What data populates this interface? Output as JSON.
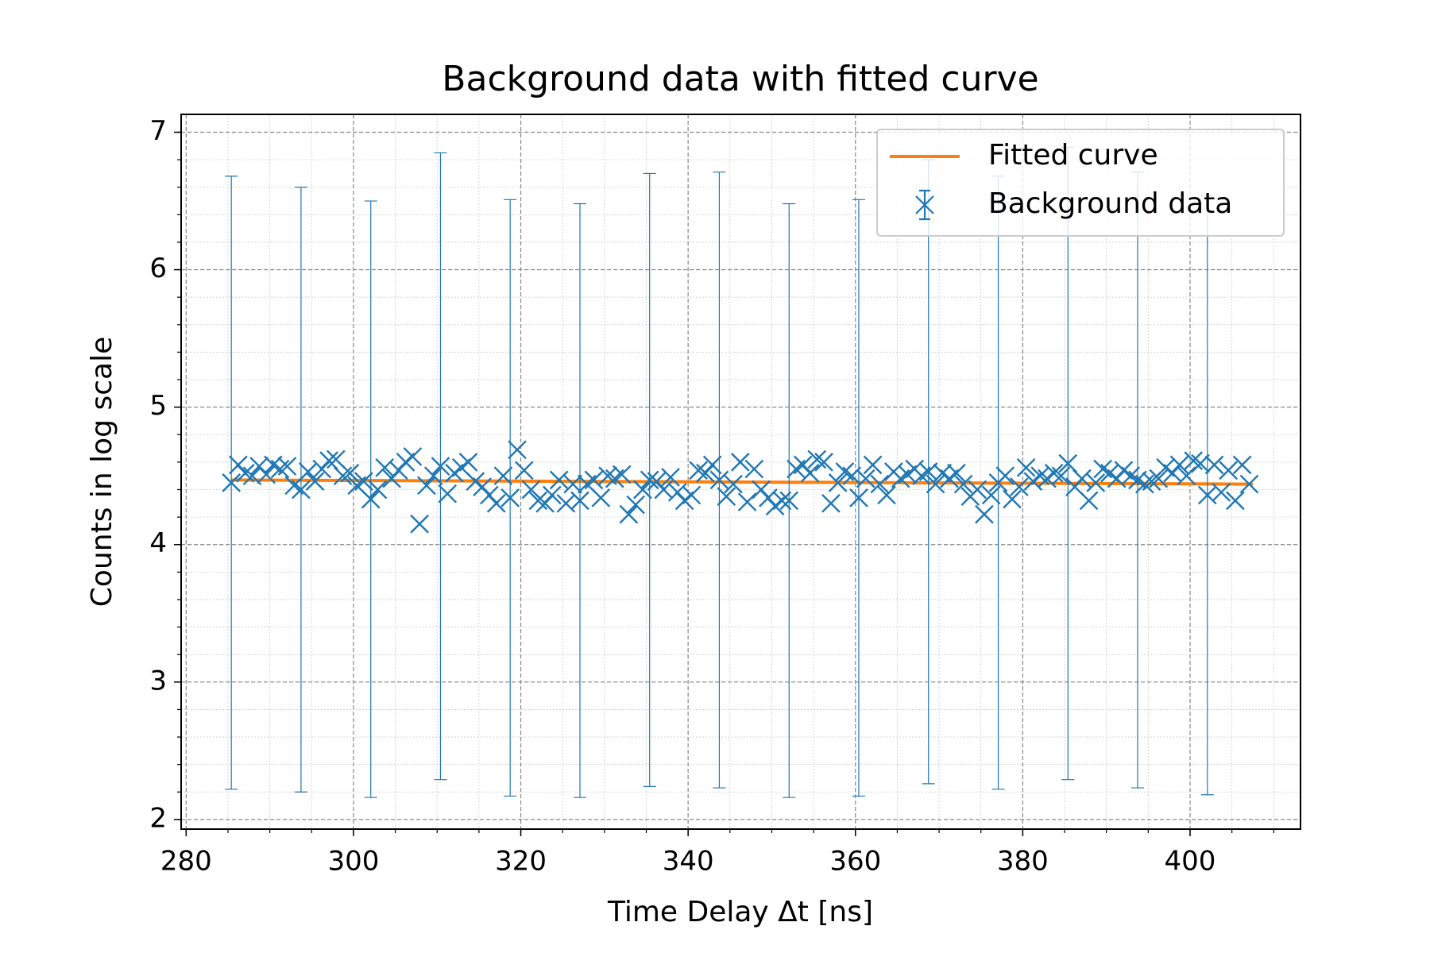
{
  "chart_data": {
    "type": "scatter",
    "title": "Background data with fitted curve",
    "x_label": "Time Delay Δt [ns]",
    "y_label": "Counts in log scale",
    "xlim": [
      279.4,
      413.2
    ],
    "ylim": [
      1.93,
      7.13
    ],
    "xticks": [
      280,
      300,
      320,
      340,
      360,
      380,
      400
    ],
    "yticks": [
      2,
      3,
      4,
      5,
      6,
      7
    ],
    "grid": true,
    "legend": "upper right",
    "series": [
      {
        "name": "Fitted curve",
        "type": "line",
        "color": "#ff7f0e",
        "x": [
          285.4,
          407.5
        ],
        "values": [
          4.47,
          4.44
        ]
      },
      {
        "name": "Background data",
        "type": "errorbar",
        "color": "#1f77b4",
        "x": [
          285.4,
          286.23,
          287.07,
          287.9,
          288.73,
          289.57,
          290.4,
          291.23,
          292.07,
          292.9,
          293.73,
          294.57,
          295.4,
          296.23,
          297.07,
          297.9,
          298.73,
          299.57,
          300.4,
          301.23,
          302.07,
          302.9,
          303.73,
          304.57,
          305.4,
          306.23,
          307.07,
          307.9,
          308.73,
          309.57,
          310.4,
          311.23,
          312.07,
          312.9,
          313.73,
          314.57,
          315.4,
          316.23,
          317.07,
          317.9,
          318.73,
          319.57,
          320.4,
          321.23,
          322.07,
          322.9,
          323.73,
          324.57,
          325.4,
          326.23,
          327.07,
          327.9,
          328.73,
          329.57,
          330.4,
          331.23,
          332.07,
          332.9,
          333.73,
          334.57,
          335.4,
          336.23,
          337.07,
          337.9,
          338.73,
          339.57,
          340.4,
          341.23,
          342.07,
          342.9,
          343.73,
          344.57,
          345.4,
          346.23,
          347.07,
          347.9,
          348.73,
          349.57,
          350.4,
          351.23,
          352.07,
          352.9,
          353.73,
          354.57,
          355.4,
          356.23,
          357.07,
          357.9,
          358.73,
          359.57,
          360.4,
          361.23,
          362.07,
          362.9,
          363.73,
          364.57,
          365.4,
          366.23,
          367.07,
          367.9,
          368.73,
          369.57,
          370.4,
          371.23,
          372.07,
          372.9,
          373.73,
          374.57,
          375.4,
          376.23,
          377.07,
          377.9,
          378.73,
          379.57,
          380.4,
          381.23,
          382.07,
          382.9,
          383.73,
          384.57,
          385.4,
          386.23,
          387.07,
          387.9,
          388.73,
          389.57,
          390.4,
          391.23,
          392.07,
          392.9,
          393.73,
          394.57,
          395.4,
          396.23,
          397.07,
          397.9,
          398.73,
          399.57,
          400.4,
          401.23,
          402.07,
          402.9,
          403.73,
          404.57,
          405.4,
          406.23,
          407.07
        ],
        "values": [
          4.45,
          4.58,
          4.52,
          4.5,
          4.57,
          4.51,
          4.58,
          4.55,
          4.57,
          4.43,
          4.4,
          4.53,
          4.46,
          4.55,
          4.61,
          4.62,
          4.5,
          4.52,
          4.43,
          4.46,
          4.33,
          4.4,
          4.56,
          4.48,
          4.54,
          4.6,
          4.64,
          4.15,
          4.43,
          4.5,
          4.57,
          4.37,
          4.52,
          4.56,
          4.6,
          4.46,
          4.42,
          4.36,
          4.3,
          4.5,
          4.34,
          4.69,
          4.54,
          4.4,
          4.32,
          4.3,
          4.36,
          4.47,
          4.3,
          4.44,
          4.32,
          4.44,
          4.47,
          4.34,
          4.5,
          4.48,
          4.51,
          4.22,
          4.29,
          4.4,
          4.47,
          4.46,
          4.4,
          4.49,
          4.38,
          4.32,
          4.36,
          4.54,
          4.52,
          4.58,
          4.47,
          4.35,
          4.44,
          4.6,
          4.31,
          4.55,
          4.4,
          4.34,
          4.28,
          4.32,
          4.32,
          4.55,
          4.58,
          4.52,
          4.62,
          4.6,
          4.3,
          4.45,
          4.53,
          4.5,
          4.34,
          4.48,
          4.58,
          4.44,
          4.36,
          4.53,
          4.48,
          4.51,
          4.55,
          4.5,
          4.53,
          4.44,
          4.52,
          4.48,
          4.52,
          4.44,
          4.35,
          4.4,
          4.22,
          4.36,
          4.45,
          4.5,
          4.33,
          4.42,
          4.56,
          4.46,
          4.5,
          4.48,
          4.52,
          4.5,
          4.59,
          4.42,
          4.48,
          4.32,
          4.45,
          4.55,
          4.52,
          4.48,
          4.54,
          4.5,
          4.47,
          4.44,
          4.46,
          4.48,
          4.56,
          4.52,
          4.58,
          4.5,
          4.61,
          4.59,
          4.36,
          4.58,
          4.38,
          4.54,
          4.32,
          4.58,
          4.44
        ],
        "yerr": [
          2.23,
          null,
          null,
          null,
          null,
          null,
          null,
          null,
          null,
          null,
          2.2,
          null,
          null,
          null,
          null,
          null,
          null,
          null,
          null,
          null,
          2.17,
          null,
          null,
          null,
          null,
          null,
          null,
          null,
          null,
          null,
          2.28,
          null,
          null,
          null,
          null,
          null,
          null,
          null,
          null,
          null,
          2.17,
          null,
          null,
          null,
          null,
          null,
          null,
          null,
          null,
          null,
          2.16,
          null,
          null,
          null,
          null,
          null,
          null,
          null,
          null,
          null,
          2.23,
          null,
          null,
          null,
          null,
          null,
          null,
          null,
          null,
          null,
          2.24,
          null,
          null,
          null,
          null,
          null,
          null,
          null,
          null,
          null,
          2.16,
          null,
          null,
          null,
          null,
          null,
          null,
          null,
          null,
          null,
          2.17,
          null,
          null,
          null,
          null,
          null,
          null,
          null,
          null,
          null,
          2.27,
          null,
          null,
          null,
          null,
          null,
          null,
          null,
          null,
          null,
          2.23,
          null,
          null,
          null,
          null,
          null,
          null,
          null,
          null,
          null,
          2.3,
          null,
          null,
          null,
          null,
          null,
          null,
          null,
          null,
          null,
          2.24,
          null,
          null,
          null,
          null,
          null,
          null,
          null,
          null,
          null,
          2.18,
          null,
          null,
          null,
          null,
          null,
          null
        ]
      }
    ]
  }
}
